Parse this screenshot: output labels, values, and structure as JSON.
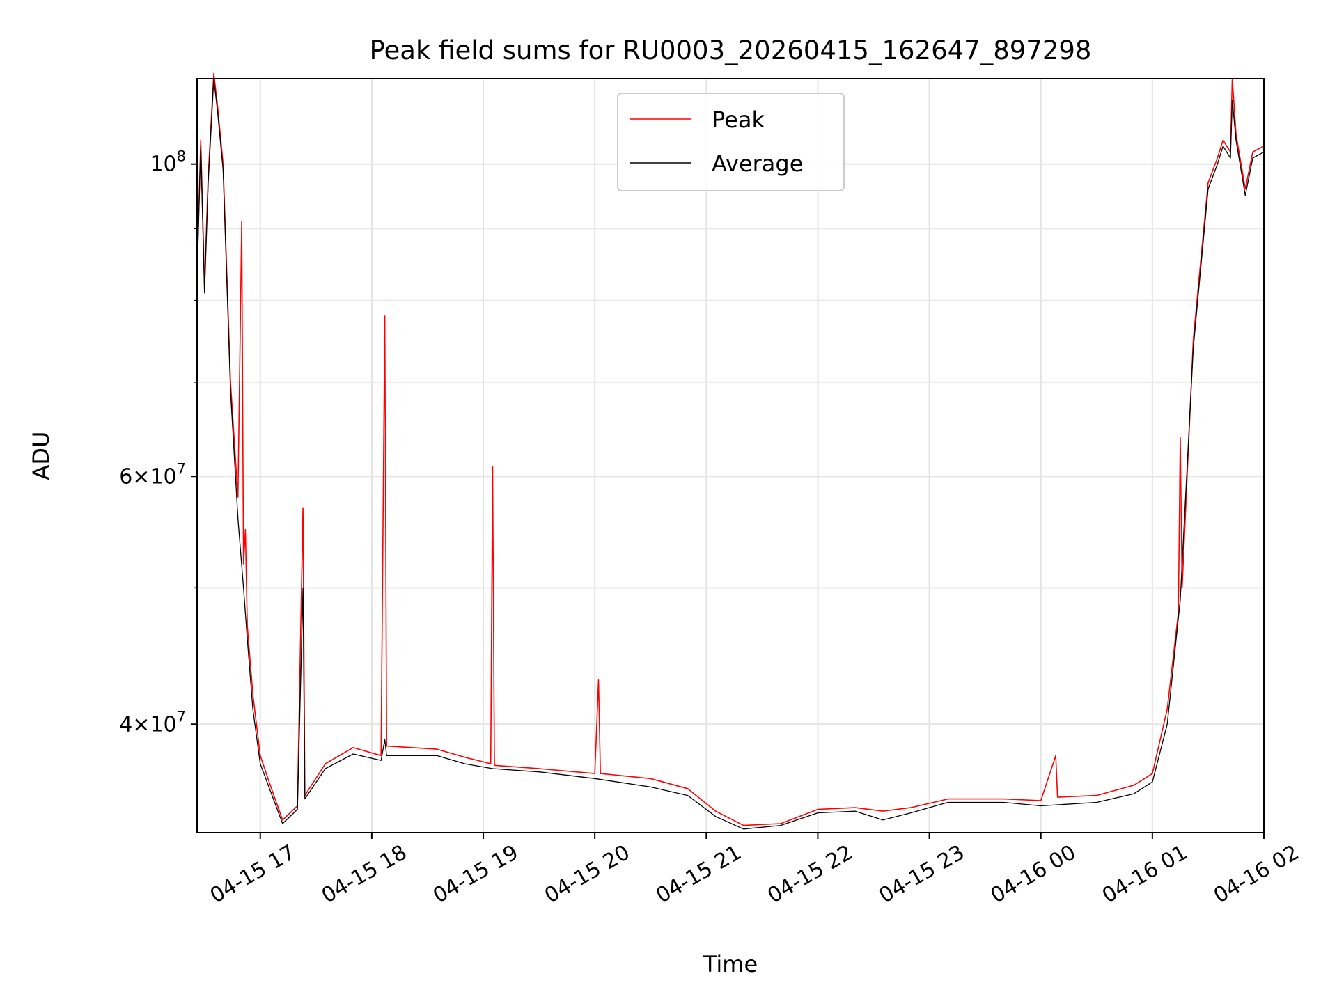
{
  "chart_data": {
    "type": "line",
    "title": "Peak field sums for RU0003_20260415_162647_897298",
    "xlabel": "Time",
    "ylabel": "ADU",
    "yscale": "log",
    "ylim": [
      33500000,
      115000000
    ],
    "xlim": [
      "2026-04-15 16:26",
      "2026-04-16 02:00"
    ],
    "grid": true,
    "legend_position": "top-center",
    "x_ticks": [
      {
        "value": "2026-04-15 17:00",
        "label": "04-15 17"
      },
      {
        "value": "2026-04-15 18:00",
        "label": "04-15 18"
      },
      {
        "value": "2026-04-15 19:00",
        "label": "04-15 19"
      },
      {
        "value": "2026-04-15 20:00",
        "label": "04-15 20"
      },
      {
        "value": "2026-04-15 21:00",
        "label": "04-15 21"
      },
      {
        "value": "2026-04-15 22:00",
        "label": "04-15 22"
      },
      {
        "value": "2026-04-15 23:00",
        "label": "04-15 23"
      },
      {
        "value": "2026-04-16 00:00",
        "label": "04-16 00"
      },
      {
        "value": "2026-04-16 01:00",
        "label": "04-16 01"
      },
      {
        "value": "2026-04-16 02:00",
        "label": "04-16 02"
      }
    ],
    "y_ticks": [
      {
        "value": 40000000,
        "base": "4",
        "exp": "7"
      },
      {
        "value": 60000000,
        "base": "6",
        "exp": "7"
      },
      {
        "value": 100000000,
        "base": "",
        "exp": "8"
      }
    ],
    "y_minor_ticks": [
      50000000,
      70000000,
      80000000,
      90000000
    ],
    "series": [
      {
        "name": "Peak",
        "color": "#ff0000",
        "points": [
          [
            "2026-04-15 16:26",
            84000000
          ],
          [
            "2026-04-15 16:28",
            104000000
          ],
          [
            "2026-04-15 16:30",
            82000000
          ],
          [
            "2026-04-15 16:32",
            98000000
          ],
          [
            "2026-04-15 16:35",
            116000000
          ],
          [
            "2026-04-15 16:37",
            110000000
          ],
          [
            "2026-04-15 16:40",
            100000000
          ],
          [
            "2026-04-15 16:44",
            70000000
          ],
          [
            "2026-04-15 16:48",
            58000000
          ],
          [
            "2026-04-15 16:50",
            91000000
          ],
          [
            "2026-04-15 16:51",
            52000000
          ],
          [
            "2026-04-15 16:52",
            55000000
          ],
          [
            "2026-04-15 16:53",
            47000000
          ],
          [
            "2026-04-15 16:56",
            42000000
          ],
          [
            "2026-04-15 17:00",
            38000000
          ],
          [
            "2026-04-15 17:06",
            36000000
          ],
          [
            "2026-04-15 17:12",
            34200000
          ],
          [
            "2026-04-15 17:20",
            35000000
          ],
          [
            "2026-04-15 17:23",
            57000000
          ],
          [
            "2026-04-15 17:24",
            35600000
          ],
          [
            "2026-04-15 17:35",
            37500000
          ],
          [
            "2026-04-15 17:50",
            38500000
          ],
          [
            "2026-04-15 18:05",
            38000000
          ],
          [
            "2026-04-15 18:07",
            78000000
          ],
          [
            "2026-04-15 18:08",
            38600000
          ],
          [
            "2026-04-15 18:35",
            38400000
          ],
          [
            "2026-04-15 18:50",
            37900000
          ],
          [
            "2026-04-15 19:04",
            37500000
          ],
          [
            "2026-04-15 19:05",
            61000000
          ],
          [
            "2026-04-15 19:06",
            37400000
          ],
          [
            "2026-04-15 19:30",
            37200000
          ],
          [
            "2026-04-15 20:00",
            36900000
          ],
          [
            "2026-04-15 20:02",
            43000000
          ],
          [
            "2026-04-15 20:03",
            36900000
          ],
          [
            "2026-04-15 20:30",
            36600000
          ],
          [
            "2026-04-15 20:50",
            36000000
          ],
          [
            "2026-04-15 21:05",
            34700000
          ],
          [
            "2026-04-15 21:20",
            33900000
          ],
          [
            "2026-04-15 21:40",
            34000000
          ],
          [
            "2026-04-15 22:00",
            34800000
          ],
          [
            "2026-04-15 22:20",
            34900000
          ],
          [
            "2026-04-15 22:35",
            34700000
          ],
          [
            "2026-04-15 22:50",
            34900000
          ],
          [
            "2026-04-15 23:10",
            35400000
          ],
          [
            "2026-04-15 23:40",
            35400000
          ],
          [
            "2026-04-16 00:00",
            35300000
          ],
          [
            "2026-04-16 00:08",
            38000000
          ],
          [
            "2026-04-16 00:09",
            35500000
          ],
          [
            "2026-04-16 00:30",
            35600000
          ],
          [
            "2026-04-16 00:50",
            36200000
          ],
          [
            "2026-04-16 01:00",
            36900000
          ],
          [
            "2026-04-16 01:08",
            41000000
          ],
          [
            "2026-04-16 01:14",
            48000000
          ],
          [
            "2026-04-16 01:15",
            64000000
          ],
          [
            "2026-04-16 01:16",
            50000000
          ],
          [
            "2026-04-16 01:22",
            75000000
          ],
          [
            "2026-04-16 01:30",
            97000000
          ],
          [
            "2026-04-16 01:35",
            101000000
          ],
          [
            "2026-04-16 01:38",
            104000000
          ],
          [
            "2026-04-16 01:42",
            102000000
          ],
          [
            "2026-04-16 01:43",
            115000000
          ],
          [
            "2026-04-16 01:45",
            105000000
          ],
          [
            "2026-04-16 01:50",
            96000000
          ],
          [
            "2026-04-16 01:54",
            102000000
          ],
          [
            "2026-04-16 02:00",
            103000000
          ]
        ]
      },
      {
        "name": "Average",
        "color": "#000000",
        "points": [
          [
            "2026-04-15 16:26",
            83000000
          ],
          [
            "2026-04-15 16:28",
            103000000
          ],
          [
            "2026-04-15 16:30",
            81000000
          ],
          [
            "2026-04-15 16:32",
            97000000
          ],
          [
            "2026-04-15 16:35",
            115000000
          ],
          [
            "2026-04-15 16:37",
            109000000
          ],
          [
            "2026-04-15 16:40",
            99000000
          ],
          [
            "2026-04-15 16:44",
            69000000
          ],
          [
            "2026-04-15 16:48",
            56000000
          ],
          [
            "2026-04-15 16:51",
            50000000
          ],
          [
            "2026-04-15 16:53",
            46000000
          ],
          [
            "2026-04-15 16:56",
            41000000
          ],
          [
            "2026-04-15 17:00",
            37500000
          ],
          [
            "2026-04-15 17:06",
            35700000
          ],
          [
            "2026-04-15 17:12",
            34000000
          ],
          [
            "2026-04-15 17:20",
            34800000
          ],
          [
            "2026-04-15 17:23",
            50000000
          ],
          [
            "2026-04-15 17:24",
            35400000
          ],
          [
            "2026-04-15 17:35",
            37200000
          ],
          [
            "2026-04-15 17:50",
            38100000
          ],
          [
            "2026-04-15 18:05",
            37700000
          ],
          [
            "2026-04-15 18:07",
            39000000
          ],
          [
            "2026-04-15 18:08",
            38000000
          ],
          [
            "2026-04-15 18:35",
            38000000
          ],
          [
            "2026-04-15 18:50",
            37500000
          ],
          [
            "2026-04-15 19:05",
            37200000
          ],
          [
            "2026-04-15 19:30",
            37000000
          ],
          [
            "2026-04-15 20:00",
            36600000
          ],
          [
            "2026-04-15 20:30",
            36100000
          ],
          [
            "2026-04-15 20:50",
            35600000
          ],
          [
            "2026-04-15 21:05",
            34400000
          ],
          [
            "2026-04-15 21:20",
            33700000
          ],
          [
            "2026-04-15 21:40",
            33900000
          ],
          [
            "2026-04-15 22:00",
            34600000
          ],
          [
            "2026-04-15 22:20",
            34700000
          ],
          [
            "2026-04-15 22:35",
            34200000
          ],
          [
            "2026-04-15 22:50",
            34600000
          ],
          [
            "2026-04-15 23:10",
            35200000
          ],
          [
            "2026-04-15 23:40",
            35200000
          ],
          [
            "2026-04-16 00:00",
            35000000
          ],
          [
            "2026-04-16 00:30",
            35200000
          ],
          [
            "2026-04-16 00:50",
            35700000
          ],
          [
            "2026-04-16 01:00",
            36400000
          ],
          [
            "2026-04-16 01:08",
            40000000
          ],
          [
            "2026-04-16 01:15",
            49000000
          ],
          [
            "2026-04-16 01:22",
            74000000
          ],
          [
            "2026-04-16 01:30",
            96000000
          ],
          [
            "2026-04-16 01:35",
            100000000
          ],
          [
            "2026-04-16 01:38",
            103000000
          ],
          [
            "2026-04-16 01:42",
            101000000
          ],
          [
            "2026-04-16 01:43",
            111000000
          ],
          [
            "2026-04-16 01:45",
            104000000
          ],
          [
            "2026-04-16 01:50",
            95000000
          ],
          [
            "2026-04-16 01:54",
            101000000
          ],
          [
            "2026-04-16 02:00",
            102000000
          ]
        ]
      }
    ]
  }
}
